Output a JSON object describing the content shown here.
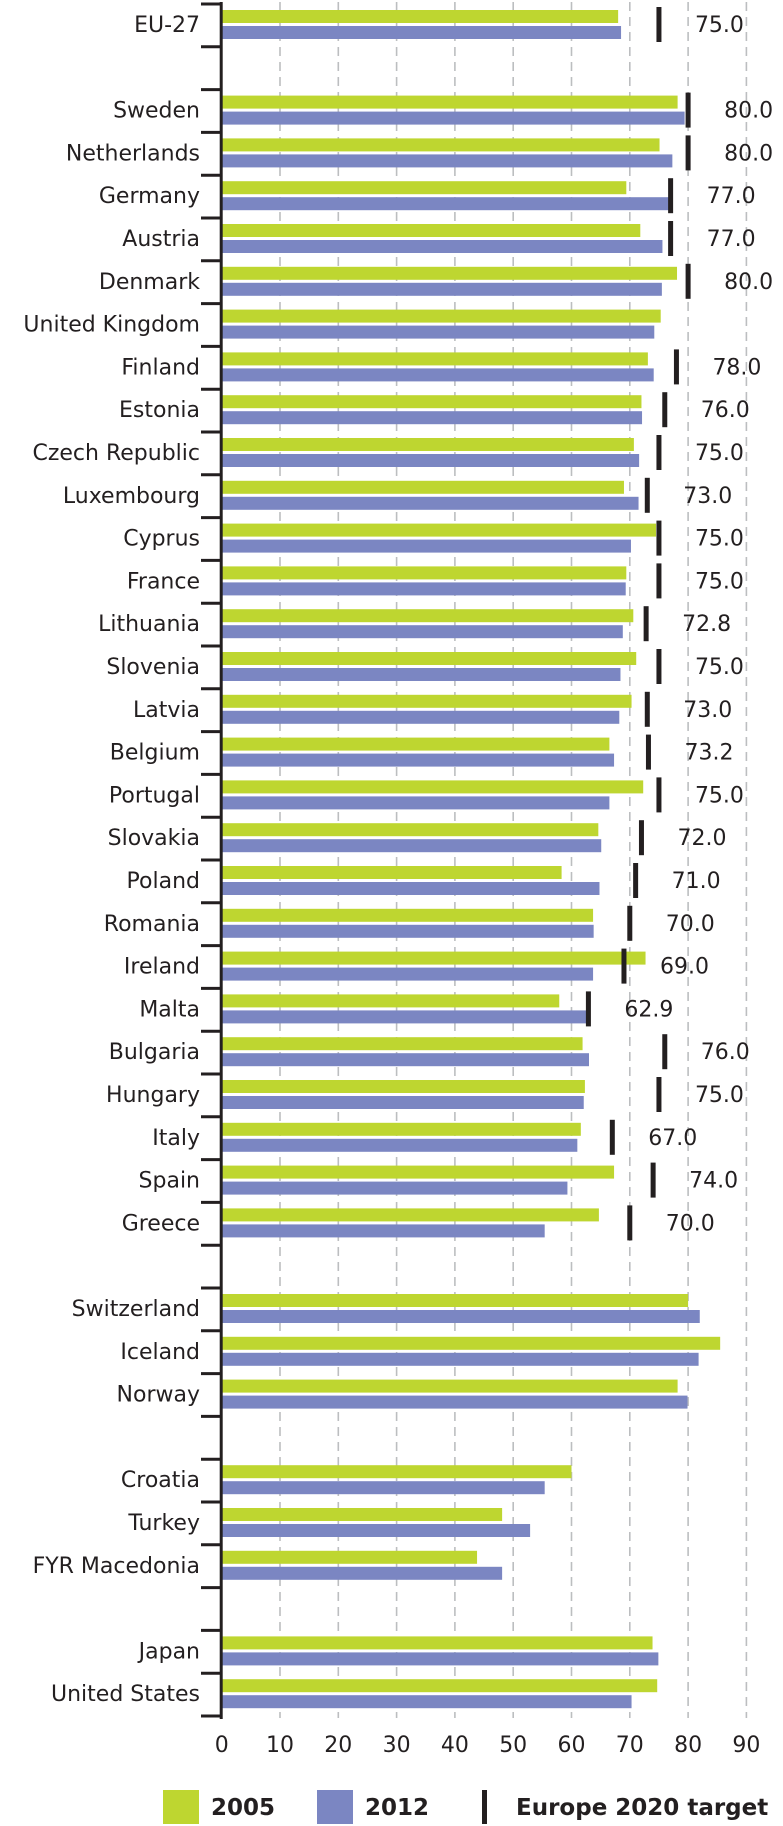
{
  "chart_data": {
    "type": "bar",
    "orientation": "horizontal",
    "xlim": [
      0,
      90
    ],
    "x_ticks": [
      "0",
      "10",
      "20",
      "30",
      "40",
      "50",
      "60",
      "70",
      "80",
      "90"
    ],
    "grid": "vertical dashed",
    "legend_position": "bottom",
    "colors": {
      "2005": "#bed630",
      "2012": "#7b86c2",
      "target": "#231f20"
    },
    "legend": [
      {
        "key": "2005",
        "label": "2005"
      },
      {
        "key": "2012",
        "label": "2012"
      },
      {
        "key": "target",
        "label": "Europe 2020 target"
      }
    ],
    "groups": [
      [
        {
          "country": "EU-27",
          "v2005": 68.0,
          "v2012": 68.5,
          "target": 75.0,
          "target_label": "75.0"
        }
      ],
      [
        {
          "country": "Sweden",
          "v2005": 78.2,
          "v2012": 79.4,
          "target": 80.0,
          "target_label": "80.0"
        },
        {
          "country": "Netherlands",
          "v2005": 75.1,
          "v2012": 77.3,
          "target": 80.0,
          "target_label": "80.0"
        },
        {
          "country": "Germany",
          "v2005": 69.4,
          "v2012": 76.8,
          "target": 77.0,
          "target_label": "77.0"
        },
        {
          "country": "Austria",
          "v2005": 71.8,
          "v2012": 75.6,
          "target": 77.0,
          "target_label": "77.0"
        },
        {
          "country": "Denmark",
          "v2005": 78.1,
          "v2012": 75.5,
          "target": 80.0,
          "target_label": "80.0"
        },
        {
          "country": "United Kingdom",
          "v2005": 75.3,
          "v2012": 74.2,
          "target": null,
          "target_label": null
        },
        {
          "country": "Finland",
          "v2005": 73.1,
          "v2012": 74.1,
          "target": 78.0,
          "target_label": "78.0"
        },
        {
          "country": "Estonia",
          "v2005": 72.0,
          "v2012": 72.1,
          "target": 76.0,
          "target_label": "76.0"
        },
        {
          "country": "Czech Republic",
          "v2005": 70.7,
          "v2012": 71.6,
          "target": 75.0,
          "target_label": "75.0"
        },
        {
          "country": "Luxembourg",
          "v2005": 69.0,
          "v2012": 71.5,
          "target": 73.0,
          "target_label": "73.0"
        },
        {
          "country": "Cyprus",
          "v2005": 74.5,
          "v2012": 70.2,
          "target": 75.0,
          "target_label": "75.0"
        },
        {
          "country": "France",
          "v2005": 69.4,
          "v2012": 69.3,
          "target": 75.0,
          "target_label": "75.0"
        },
        {
          "country": "Lithuania",
          "v2005": 70.6,
          "v2012": 68.8,
          "target": 72.8,
          "target_label": "72.8"
        },
        {
          "country": "Slovenia",
          "v2005": 71.1,
          "v2012": 68.4,
          "target": 75.0,
          "target_label": "75.0"
        },
        {
          "country": "Latvia",
          "v2005": 70.3,
          "v2012": 68.2,
          "target": 73.0,
          "target_label": "73.0"
        },
        {
          "country": "Belgium",
          "v2005": 66.5,
          "v2012": 67.3,
          "target": 73.2,
          "target_label": "73.2"
        },
        {
          "country": "Portugal",
          "v2005": 72.3,
          "v2012": 66.5,
          "target": 75.0,
          "target_label": "75.0"
        },
        {
          "country": "Slovakia",
          "v2005": 64.6,
          "v2012": 65.1,
          "target": 72.0,
          "target_label": "72.0"
        },
        {
          "country": "Poland",
          "v2005": 58.3,
          "v2012": 64.8,
          "target": 71.0,
          "target_label": "71.0"
        },
        {
          "country": "Romania",
          "v2005": 63.7,
          "v2012": 63.8,
          "target": 70.0,
          "target_label": "70.0"
        },
        {
          "country": "Ireland",
          "v2005": 72.7,
          "v2012": 63.7,
          "target": 69.0,
          "target_label": "69.0"
        },
        {
          "country": "Malta",
          "v2005": 57.9,
          "v2012": 62.5,
          "target": 62.9,
          "target_label": "62.9"
        },
        {
          "country": "Bulgaria",
          "v2005": 61.9,
          "v2012": 63.0,
          "target": 76.0,
          "target_label": "76.0"
        },
        {
          "country": "Hungary",
          "v2005": 62.3,
          "v2012": 62.1,
          "target": 75.0,
          "target_label": "75.0"
        },
        {
          "country": "Italy",
          "v2005": 61.6,
          "v2012": 61.0,
          "target": 67.0,
          "target_label": "67.0"
        },
        {
          "country": "Spain",
          "v2005": 67.3,
          "v2012": 59.3,
          "target": 74.0,
          "target_label": "74.0"
        },
        {
          "country": "Greece",
          "v2005": 64.7,
          "v2012": 55.4,
          "target": 70.0,
          "target_label": "70.0"
        }
      ],
      [
        {
          "country": "Switzerland",
          "v2005": 80.0,
          "v2012": 82.0,
          "target": null,
          "target_label": null
        },
        {
          "country": "Iceland",
          "v2005": 85.5,
          "v2012": 81.8,
          "target": null,
          "target_label": null
        },
        {
          "country": "Norway",
          "v2005": 78.2,
          "v2012": 79.9,
          "target": null,
          "target_label": null
        }
      ],
      [
        {
          "country": "Croatia",
          "v2005": 60.0,
          "v2012": 55.4,
          "target": null,
          "target_label": null
        },
        {
          "country": "Turkey",
          "v2005": 48.1,
          "v2012": 52.9,
          "target": null,
          "target_label": null
        },
        {
          "country": "FYR Macedonia",
          "v2005": 43.8,
          "v2012": 48.1,
          "target": null,
          "target_label": null
        }
      ],
      [
        {
          "country": "Japan",
          "v2005": 73.9,
          "v2012": 74.9,
          "target": null,
          "target_label": null
        },
        {
          "country": "United States",
          "v2005": 74.7,
          "v2012": 70.3,
          "target": null,
          "target_label": null
        }
      ]
    ]
  }
}
